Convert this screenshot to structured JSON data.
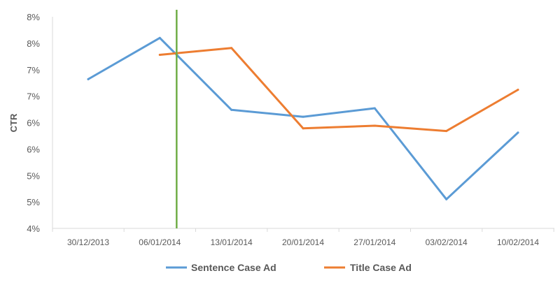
{
  "chart_data": {
    "type": "line",
    "title": "",
    "xlabel": "",
    "ylabel": "CTR",
    "x": [
      "30/12/2013",
      "06/01/2014",
      "13/01/2014",
      "20/01/2014",
      "27/01/2014",
      "03/02/2014",
      "10/02/2014"
    ],
    "y_ticks": [
      "4%",
      "5%",
      "5%",
      "6%",
      "6%",
      "7%",
      "7%",
      "8%",
      "8%"
    ],
    "ylim": [
      4.0,
      8.0
    ],
    "grid": false,
    "legend": "bottom",
    "series": [
      {
        "name": "Sentence Case Ad",
        "color": "#5b9bd5",
        "values": [
          6.82,
          7.6,
          6.24,
          6.11,
          6.27,
          4.55,
          5.81
        ]
      },
      {
        "name": "Title Case Ad",
        "color": "#ed7d31",
        "values": [
          null,
          7.28,
          7.41,
          5.89,
          5.94,
          5.84,
          6.62
        ]
      }
    ],
    "marker_line": {
      "x": "06/01/2014",
      "color": "#70ad47"
    }
  }
}
